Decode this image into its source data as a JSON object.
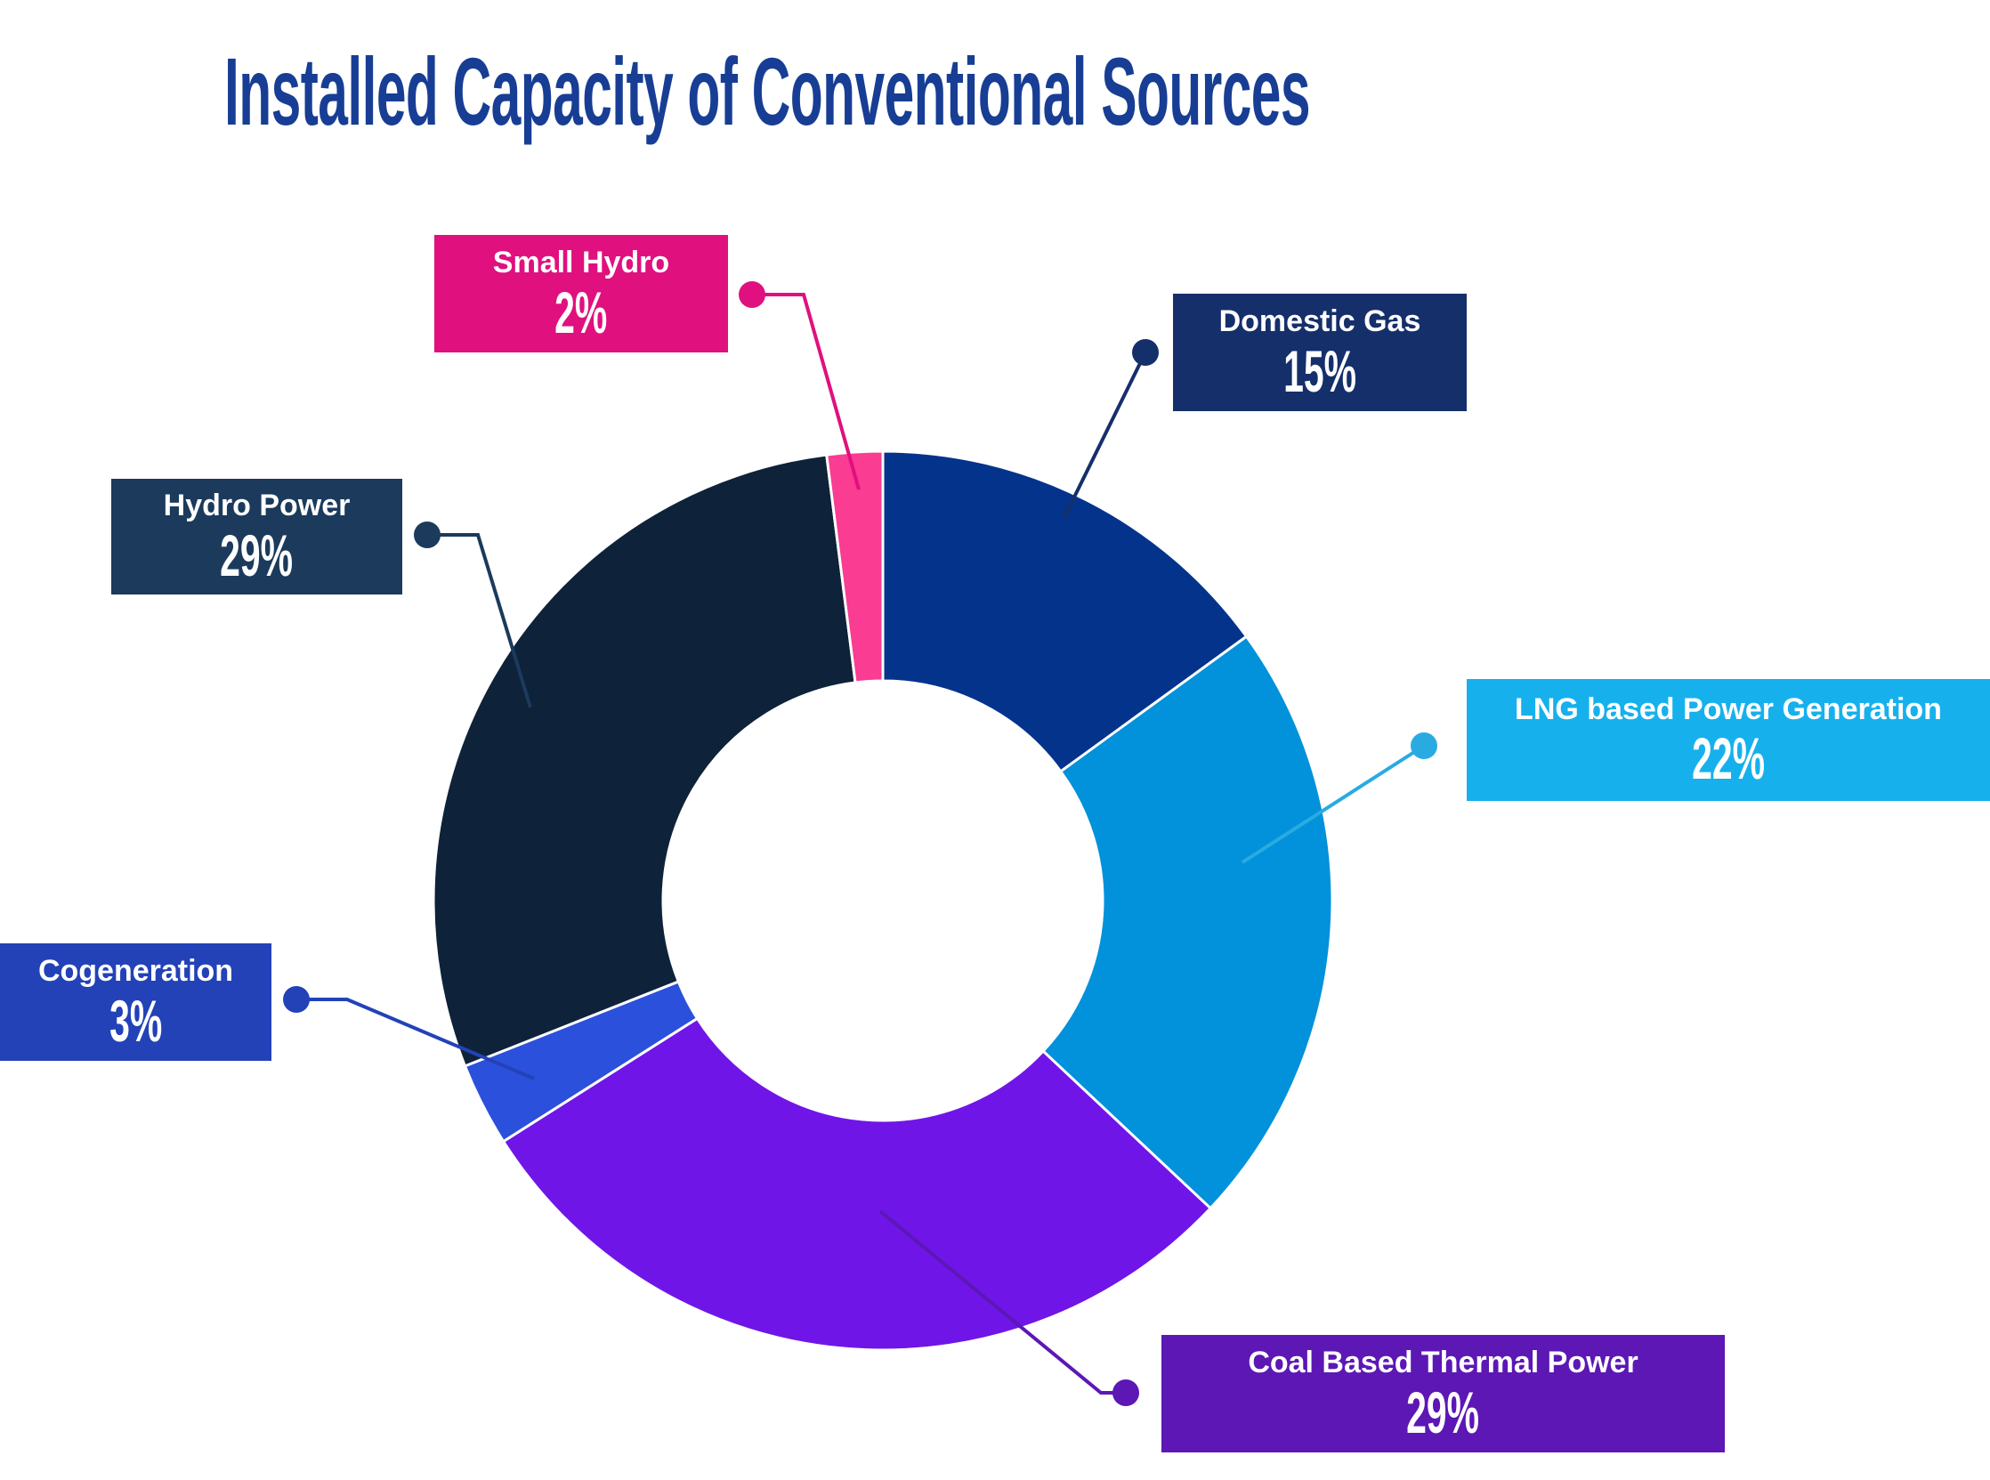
{
  "title_color": "#173E94",
  "chart_data": {
    "type": "pie",
    "donut": true,
    "title": "Installed Capacity of Conventional Sources",
    "direction": "clockwise",
    "start_angle_deg": 0,
    "inner_radius_ratio": 0.49,
    "legend_position": "callout-labels",
    "slices": [
      {
        "name": "Domestic Gas",
        "value": 15,
        "pct_label": "15%",
        "segment_color": "#04338C",
        "box_color": "#152F6B",
        "leader_color": "#152F6B"
      },
      {
        "name": "LNG based Power Generation",
        "value": 22,
        "pct_label": "22%",
        "segment_color": "#0291DB",
        "box_color": "#16B1ED",
        "leader_color": "#29ABE2"
      },
      {
        "name": "Coal Based Thermal Power",
        "value": 29,
        "pct_label": "29%",
        "segment_color": "#7015E8",
        "box_color": "#5C17B5",
        "leader_color": "#5C17B5"
      },
      {
        "name": "Cogeneration",
        "value": 3,
        "pct_label": "3%",
        "segment_color": "#2B50DC",
        "box_color": "#2342B8",
        "leader_color": "#2342B8"
      },
      {
        "name": "Hydro Power",
        "value": 29,
        "pct_label": "29%",
        "segment_color": "#0E2239",
        "box_color": "#1B3A5C",
        "leader_color": "#1B3A5C"
      },
      {
        "name": "Small Hydro",
        "value": 2,
        "pct_label": "2%",
        "segment_color": "#FA3C92",
        "box_color": "#E0107E",
        "leader_color": "#E0107E"
      }
    ]
  }
}
